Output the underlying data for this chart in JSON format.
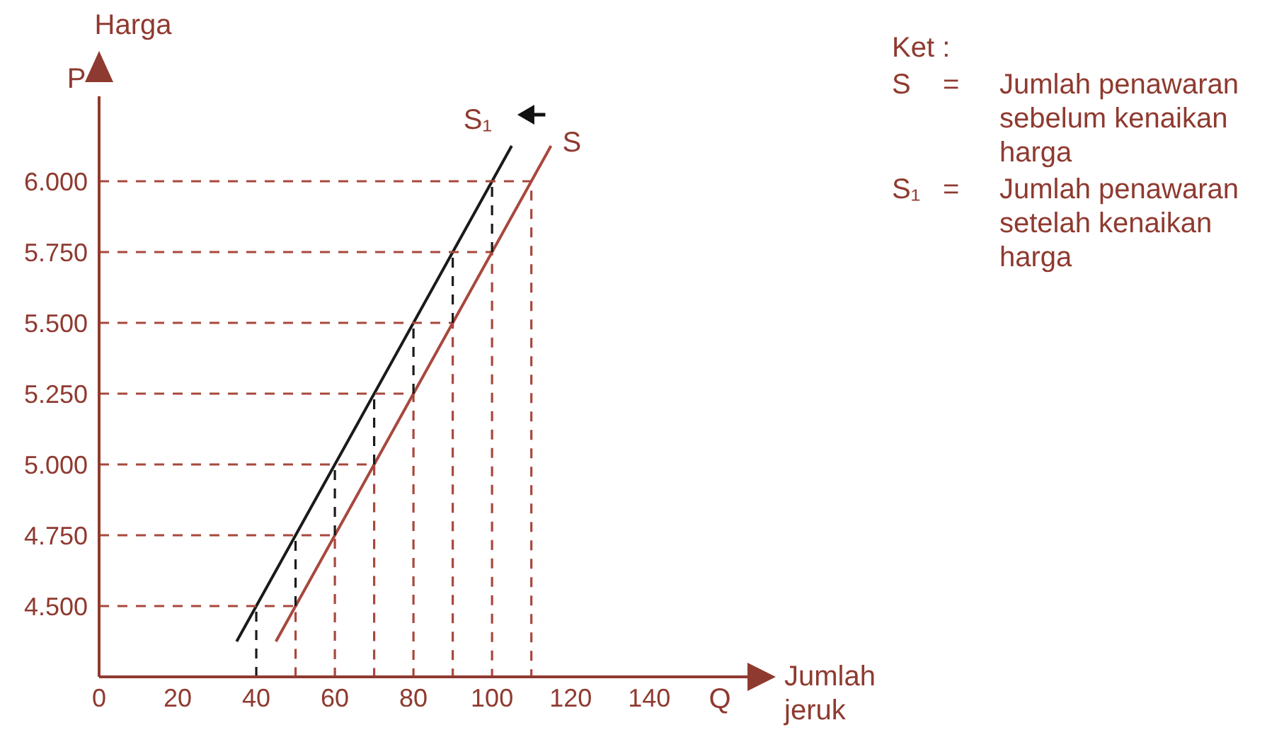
{
  "chart_data": {
    "type": "line",
    "xlabel": "Jumlah jeruk",
    "ylabel": "Harga",
    "xlim": [
      0,
      165
    ],
    "ylim": [
      4250,
      6300
    ],
    "xticks": [
      0,
      20,
      40,
      60,
      80,
      100,
      120,
      140
    ],
    "yticks": [
      {
        "value": 4500,
        "label": "4.500"
      },
      {
        "value": 4750,
        "label": "4.750"
      },
      {
        "value": 5000,
        "label": "5.000"
      },
      {
        "value": 5250,
        "label": "5.250"
      },
      {
        "value": 5500,
        "label": "5.500"
      },
      {
        "value": 5750,
        "label": "5.750"
      },
      {
        "value": 6000,
        "label": "6.000"
      }
    ],
    "marker": "none",
    "line_style": "solid",
    "annotations": [
      "P",
      "Q",
      "Ket :",
      "S = Jumlah penawaran sebelum kenaikan harga",
      "S₁ = Jumlah penawaran setelah kenaikan harga"
    ],
    "series": [
      {
        "name": "S",
        "color": "#a8483d",
        "x": [
          45,
          50,
          60,
          70,
          80,
          90,
          100,
          110,
          115
        ],
        "values": [
          4375,
          4500,
          4750,
          5000,
          5250,
          5500,
          5750,
          6000,
          6125
        ]
      },
      {
        "name": "S₁",
        "color": "#1a1a1a",
        "x": [
          35,
          40,
          50,
          60,
          70,
          80,
          90,
          100,
          105
        ],
        "values": [
          4375,
          4500,
          4750,
          5000,
          5250,
          5500,
          5750,
          6000,
          6125
        ]
      },
      {
        "color": "#a8483d",
        "line_style": "dashed",
        "x": [
          0,
          50,
          50
        ],
        "values": [
          4500,
          4500,
          4250
        ]
      },
      {
        "color": "#a8483d",
        "line_style": "dashed",
        "x": [
          0,
          60,
          60
        ],
        "values": [
          4750,
          4750,
          4250
        ]
      },
      {
        "color": "#a8483d",
        "line_style": "dashed",
        "x": [
          0,
          70,
          70
        ],
        "values": [
          5000,
          5000,
          4250
        ]
      },
      {
        "color": "#a8483d",
        "line_style": "dashed",
        "x": [
          0,
          80,
          80
        ],
        "values": [
          5250,
          5250,
          4250
        ]
      },
      {
        "color": "#a8483d",
        "line_style": "dashed",
        "x": [
          0,
          90,
          90
        ],
        "values": [
          5500,
          5500,
          4250
        ]
      },
      {
        "color": "#a8483d",
        "line_style": "dashed",
        "x": [
          0,
          100,
          100
        ],
        "values": [
          5750,
          5750,
          4250
        ]
      },
      {
        "color": "#a8483d",
        "line_style": "dashed",
        "x": [
          0,
          110,
          110
        ],
        "values": [
          6000,
          6000,
          4250
        ]
      },
      {
        "color": "#1a1a1a",
        "line_style": "dashed",
        "x": [
          40,
          40
        ],
        "values": [
          4250,
          4500
        ]
      },
      {
        "color": "#1a1a1a",
        "line_style": "dashed",
        "x": [
          50,
          50
        ],
        "values": [
          4500,
          4750
        ]
      },
      {
        "color": "#1a1a1a",
        "line_style": "dashed",
        "x": [
          60,
          60
        ],
        "values": [
          4750,
          5000
        ]
      },
      {
        "color": "#1a1a1a",
        "line_style": "dashed",
        "x": [
          70,
          70
        ],
        "values": [
          5000,
          5250
        ]
      },
      {
        "color": "#1a1a1a",
        "line_style": "dashed",
        "x": [
          80,
          80
        ],
        "values": [
          5250,
          5500
        ]
      },
      {
        "color": "#1a1a1a",
        "line_style": "dashed",
        "x": [
          90,
          90
        ],
        "values": [
          5500,
          5750
        ]
      },
      {
        "color": "#1a1a1a",
        "line_style": "dashed",
        "x": [
          100,
          100
        ],
        "values": [
          5750,
          6000
        ]
      }
    ]
  }
}
